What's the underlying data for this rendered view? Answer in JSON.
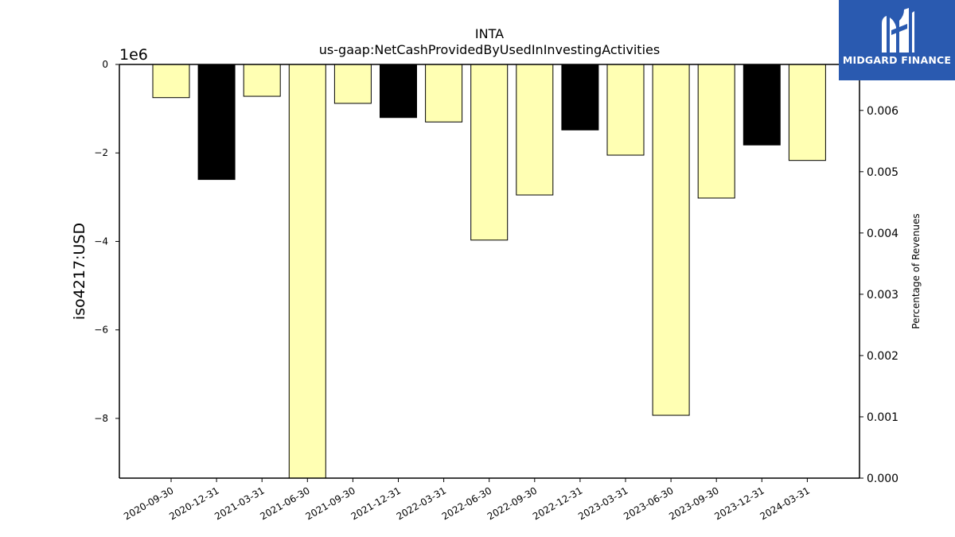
{
  "chart_data": {
    "type": "bar",
    "title": "INTA",
    "subtitle": "us-gaap:NetCashProvidedByUsedInInvestingActivities",
    "ylabel": "iso4217:USD",
    "y_offset_label": "1e6",
    "y2label": "Percentage of Revenues",
    "ylim": [
      -9.35,
      0
    ],
    "y2lim": [
      0,
      0.00675
    ],
    "yticks": [
      "0",
      "−2",
      "−4",
      "−6",
      "−8"
    ],
    "yticks_values": [
      0,
      -2,
      -4,
      -6,
      -8
    ],
    "y2ticks": [
      "0.000",
      "0.001",
      "0.002",
      "0.003",
      "0.004",
      "0.005",
      "0.006"
    ],
    "y2ticks_values": [
      0,
      0.001,
      0.002,
      0.003,
      0.004,
      0.005,
      0.006
    ],
    "categories": [
      "2020-09-30",
      "2020-12-31",
      "2021-03-31",
      "2021-06-30",
      "2021-09-30",
      "2021-12-31",
      "2022-03-31",
      "2022-06-30",
      "2022-09-30",
      "2022-12-31",
      "2023-03-31",
      "2023-06-30",
      "2023-09-30",
      "2023-12-31",
      "2024-03-31"
    ],
    "values": [
      -0.75,
      -2.6,
      -0.72,
      -9.4,
      -0.88,
      -1.2,
      -1.3,
      -3.97,
      -2.95,
      -1.48,
      -2.05,
      -7.93,
      -3.02,
      -1.82,
      -2.17
    ],
    "bar_colors": [
      "#ffffb3",
      "#000000",
      "#ffffb3",
      "#ffffb3",
      "#ffffb3",
      "#000000",
      "#ffffb3",
      "#ffffb3",
      "#ffffb3",
      "#000000",
      "#ffffb3",
      "#ffffb3",
      "#ffffb3",
      "#000000",
      "#ffffb3"
    ],
    "grid": false
  },
  "logo": {
    "text": "MIDGARD FINANCE",
    "color": "#2a5ab0"
  }
}
